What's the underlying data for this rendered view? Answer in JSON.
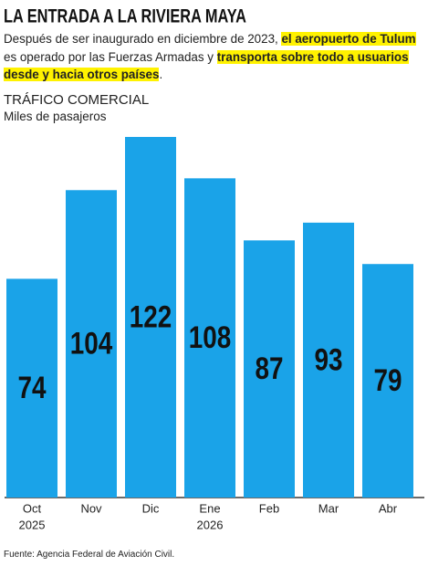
{
  "chart_data": {
    "type": "bar",
    "title": "LA ENTRADA A LA RIVIERA MAYA",
    "subtitle": [
      {
        "text": "Después de ser inaugurado en diciembre de 2023, ",
        "highlight": false
      },
      {
        "text": "el aeropuerto de Tulum",
        "highlight": true
      },
      {
        "text": " es operado por las Fuerzas Armadas y ",
        "highlight": false
      },
      {
        "text": "transporta sobre todo a usuarios desde y hacia otros países",
        "highlight": true
      },
      {
        "text": ".",
        "highlight": false
      }
    ],
    "chart_title": "TRÁFICO COMERCIAL",
    "unit": "Miles de pasajeros",
    "categories": [
      "Oct",
      "Nov",
      "Dic",
      "Ene",
      "Feb",
      "Mar",
      "Abr"
    ],
    "years": [
      "2025",
      null,
      null,
      "2026",
      null,
      null,
      null
    ],
    "values": [
      74,
      104,
      122,
      108,
      87,
      93,
      79
    ],
    "color": "#1aa3e8",
    "source": "Fuente: Agencia Federal de Aviación Civil."
  }
}
